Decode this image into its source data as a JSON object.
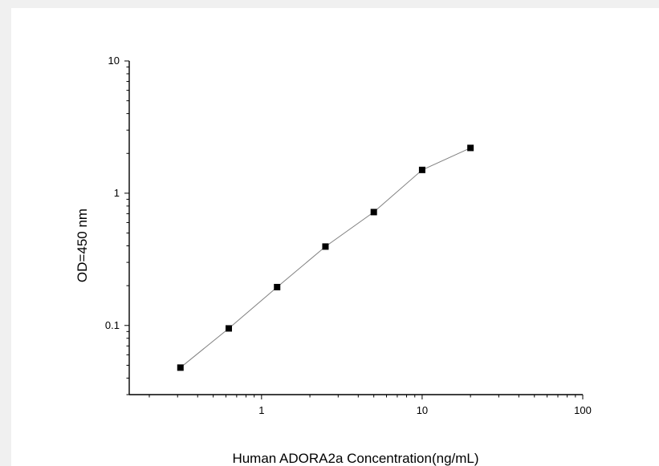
{
  "chart_data": {
    "type": "line",
    "title": "",
    "xlabel": "Human ADORA2a Concentration(ng/mL)",
    "ylabel": "OD=450 nm",
    "x_scale": "log",
    "y_scale": "log",
    "xlim": [
      0.15,
      100
    ],
    "ylim": [
      0.03,
      10
    ],
    "x_ticks": [
      1,
      10,
      100
    ],
    "x_tick_labels": [
      "1",
      "10",
      "100"
    ],
    "y_ticks": [
      0.1,
      1,
      10
    ],
    "y_tick_labels": [
      "0.1",
      "1",
      "10"
    ],
    "grid": false,
    "legend": "none",
    "marker": "square",
    "colors": {
      "line": "#808080",
      "marker": "#000000",
      "axis": "#000000"
    },
    "series": [
      {
        "x": [
          0.3125,
          0.625,
          1.25,
          2.5,
          5,
          10,
          20
        ],
        "y": [
          0.048,
          0.095,
          0.195,
          0.395,
          0.72,
          1.5,
          2.2
        ]
      }
    ]
  }
}
